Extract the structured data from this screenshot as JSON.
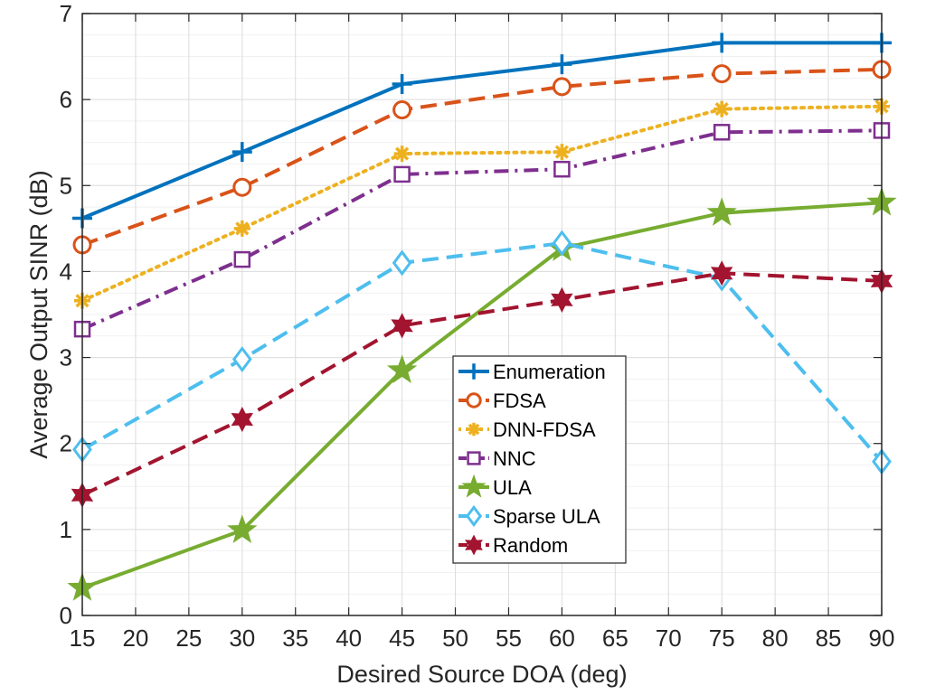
{
  "chart_data": {
    "type": "line",
    "title": "",
    "xlabel": "Desired Source DOA (deg)",
    "ylabel": "Average Output SINR (dB)",
    "xlim": [
      15,
      90
    ],
    "ylim": [
      0,
      7
    ],
    "xticks": [
      15,
      20,
      25,
      30,
      35,
      40,
      45,
      50,
      55,
      60,
      65,
      70,
      75,
      80,
      85,
      90
    ],
    "yticks": [
      0,
      1,
      2,
      3,
      4,
      5,
      6,
      7
    ],
    "grid": true,
    "legend_position": "center",
    "x": [
      15,
      30,
      45,
      60,
      75,
      90
    ],
    "series": [
      {
        "name": "Enumeration",
        "values": [
          4.62,
          5.39,
          6.18,
          6.41,
          6.66,
          6.66
        ],
        "color": "#0072BD",
        "dash": "solid",
        "marker": "plus"
      },
      {
        "name": "FDSA",
        "values": [
          4.31,
          4.98,
          5.88,
          6.15,
          6.3,
          6.35
        ],
        "color": "#D95319",
        "dash": "dashed",
        "marker": "circle"
      },
      {
        "name": "DNN-FDSA",
        "values": [
          3.66,
          4.5,
          5.37,
          5.39,
          5.89,
          5.92
        ],
        "color": "#EDB120",
        "dash": "dotted",
        "marker": "asterisk"
      },
      {
        "name": "NNC",
        "values": [
          3.33,
          4.14,
          5.13,
          5.19,
          5.62,
          5.64
        ],
        "color": "#7E2F8E",
        "dash": "dashdot",
        "marker": "square"
      },
      {
        "name": "ULA",
        "values": [
          0.32,
          0.99,
          2.85,
          4.27,
          4.68,
          4.8
        ],
        "color": "#77AC30",
        "dash": "solid",
        "marker": "star"
      },
      {
        "name": "Sparse ULA",
        "values": [
          1.93,
          2.98,
          4.1,
          4.33,
          3.92,
          1.79
        ],
        "color": "#4DBEEE",
        "dash": "dashed",
        "marker": "diamond"
      },
      {
        "name": "Random",
        "values": [
          1.4,
          2.28,
          3.37,
          3.67,
          3.98,
          3.89
        ],
        "color": "#A2142F",
        "dash": "dashed",
        "marker": "hexagram"
      }
    ]
  }
}
